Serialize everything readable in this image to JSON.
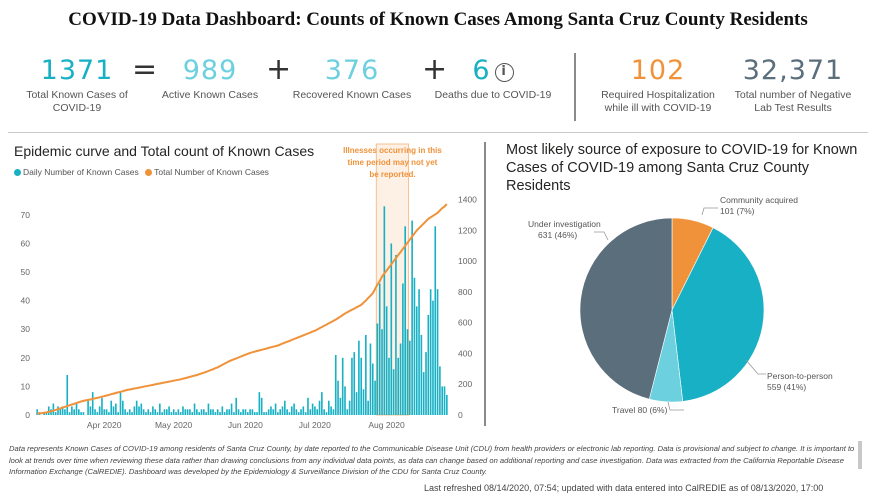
{
  "title": "COVID-19 Data Dashboard: Counts of Known Cases Among Santa Cruz County Residents",
  "colors": {
    "teal": "#17b0c4",
    "orange": "#f0923a",
    "slate": "#5b6e7b",
    "teal_light": "#6cd0de",
    "orange_kpi": "#f0923a"
  },
  "kpis": {
    "total": {
      "value": "1371",
      "label": "Total Known Cases of COVID-19"
    },
    "eq": "=",
    "active": {
      "value": "989",
      "label": "Active Known Cases"
    },
    "plus1": "+",
    "recovered": {
      "value": "376",
      "label": "Recovered Known Cases"
    },
    "plus2": "+",
    "deaths": {
      "value": "6",
      "label": "Deaths due to COVID-19",
      "icon": "info-icon"
    },
    "hosp": {
      "value": "102",
      "label": "Required Hospitalization while ill with COVID-19"
    },
    "neg": {
      "value": "32,371",
      "label": "Total number of Negative Lab Test Results"
    }
  },
  "epi": {
    "title": "Epidemic curve and Total count of Known Cases",
    "legend_daily": "Daily Number of Known Cases",
    "legend_total": "Total Number of Known Cases",
    "annotation": [
      "Illnesses occurring in this",
      "time period may not yet",
      "be reported."
    ]
  },
  "pie": {
    "title_line1": "Most likely source of exposure to COVID-19 for Known",
    "title_line2": "Cases of COVID-19 among Santa Cruz County Residents"
  },
  "footer": {
    "note": "Data represents Known Cases of COVID-19 among residents of Santa Cruz County, by date reported to the Communicable Disease Unit (CDU) from health providers or electronic lab reporting.  Data is provisional and subject to change. It is important to look at trends over time when reviewing these data rather than drawing conclusions from any individual data points, as data can change based on additional reporting and case investigation.  Data was extracted from the California Reportable Disease Information Exchange (CalREDIE).  Dashboard was developed by the Epidemiology & Surveillance Division of the CDU for Santa Cruz County.",
    "refreshed": "Last refreshed 08/14/2020, 07:54; updated with data entered into CalREDIE as of 08/13/2020, 17:00"
  },
  "chart_data": [
    {
      "type": "bar",
      "title": "Epidemic curve and Total count of Known Cases",
      "x_ticks": [
        "Apr 2020",
        "May 2020",
        "Jun 2020",
        "Jul 2020",
        "Aug 2020"
      ],
      "y_ticks_left": [
        "0",
        "10",
        "20",
        "30",
        "40",
        "50",
        "60",
        "70"
      ],
      "y_ticks_right": [
        "0",
        "200",
        "400",
        "600",
        "800",
        "1000",
        "1200",
        "1400"
      ],
      "ylim_left": [
        0,
        78
      ],
      "ylim_right": [
        0,
        1450
      ],
      "start_date": "2020-03-06",
      "shaded_period": [
        "2020-07-31",
        "2020-08-13"
      ],
      "series": [
        {
          "name": "Daily Number of Known Cases",
          "axis": "left",
          "values": [
            2,
            1,
            0,
            1,
            1,
            3,
            2,
            4,
            1,
            3,
            2,
            3,
            2,
            14,
            1,
            3,
            2,
            4,
            2,
            1,
            1,
            0,
            5,
            3,
            8,
            2,
            1,
            3,
            6,
            2,
            2,
            1,
            5,
            3,
            4,
            1,
            8,
            5,
            2,
            1,
            2,
            1,
            3,
            5,
            3,
            4,
            2,
            1,
            2,
            1,
            3,
            2,
            1,
            4,
            1,
            2,
            2,
            3,
            1,
            2,
            1,
            2,
            1,
            3,
            2,
            2,
            2,
            1,
            4,
            2,
            1,
            2,
            2,
            1,
            4,
            2,
            2,
            1,
            2,
            1,
            3,
            1,
            2,
            2,
            4,
            1,
            6,
            2,
            1,
            2,
            2,
            1,
            2,
            2,
            1,
            1,
            8,
            6,
            1,
            1,
            2,
            3,
            2,
            4,
            1,
            2,
            3,
            5,
            2,
            1,
            3,
            4,
            2,
            1,
            2,
            3,
            1,
            6,
            2,
            4,
            3,
            2,
            5,
            8,
            2,
            1,
            5,
            3,
            2,
            21,
            12,
            6,
            20,
            10,
            2,
            5,
            20,
            22,
            8,
            26,
            20,
            9,
            28,
            5,
            25,
            18,
            12,
            32,
            46,
            30,
            73,
            38,
            20,
            60,
            16,
            56,
            20,
            25,
            46,
            66,
            30,
            26,
            68,
            48,
            38,
            44,
            28,
            15,
            22,
            35,
            44,
            40,
            66,
            44,
            17,
            10,
            10,
            7
          ],
          "color": "#17b0c4"
        },
        {
          "name": "Total Number of Known Cases",
          "axis": "right",
          "values": [
            10,
            11,
            12,
            15,
            17,
            20,
            24,
            28,
            33,
            38,
            43,
            48,
            53,
            58,
            63,
            68,
            73,
            78,
            83,
            88,
            92,
            95,
            98,
            101,
            105,
            108,
            111,
            115,
            119,
            123,
            127,
            131,
            135,
            139,
            143,
            147,
            151,
            155,
            159,
            163,
            166,
            169,
            172,
            175,
            178,
            181,
            184,
            187,
            190,
            193,
            196,
            199,
            202,
            205,
            208,
            211,
            214,
            217,
            220,
            223,
            226,
            229,
            232,
            236,
            240,
            244,
            248,
            252,
            256,
            260,
            265,
            270,
            275,
            280,
            286,
            292,
            298,
            304,
            310,
            318,
            326,
            334,
            342,
            350,
            356,
            362,
            368,
            374,
            380,
            386,
            392,
            398,
            404,
            408,
            412,
            416,
            420,
            424,
            428,
            432,
            436,
            440,
            444,
            448,
            452,
            458,
            464,
            470,
            476,
            482,
            488,
            494,
            500,
            506,
            512,
            518,
            524,
            530,
            536,
            542,
            548,
            556,
            564,
            572,
            580,
            588,
            596,
            604,
            612,
            620,
            630,
            640,
            650,
            660,
            668,
            676,
            684,
            692,
            700,
            708,
            716,
            730,
            744,
            760,
            776,
            792,
            820,
            848,
            870,
            900,
            920,
            940,
            960,
            980,
            1000,
            1020,
            1040,
            1060,
            1080,
            1100,
            1120,
            1140,
            1160,
            1180,
            1200,
            1215,
            1230,
            1245,
            1260,
            1275,
            1285,
            1295,
            1305,
            1315,
            1330,
            1345,
            1355,
            1371
          ],
          "color": "#f0923a"
        }
      ]
    },
    {
      "type": "pie",
      "title": "Most likely source of exposure to COVID-19 for Known Cases of COVID-19 among Santa Cruz County Residents",
      "slices": [
        {
          "name": "Community acquired",
          "value": 101,
          "pct": "7%",
          "label": "101 (7%)",
          "color": "#f0923a"
        },
        {
          "name": "Person-to-person",
          "value": 559,
          "pct": "41%",
          "label": "559 (41%)",
          "color": "#17b0c4"
        },
        {
          "name": "Travel",
          "value": 80,
          "pct": "6%",
          "label": "80 (6%)",
          "color": "#6cd0de"
        },
        {
          "name": "Under investigation",
          "value": 631,
          "pct": "46%",
          "label": "631 (46%)",
          "color": "#5b6e7b"
        }
      ],
      "display_labels": {
        "community": "Community acquired",
        "community_val": "101 (7%)",
        "person": "Person-to-person",
        "person_val": "559 (41%)",
        "travel": "Travel 80 (6%)",
        "under": "Under investigation",
        "under_val": "631 (46%)"
      }
    }
  ]
}
